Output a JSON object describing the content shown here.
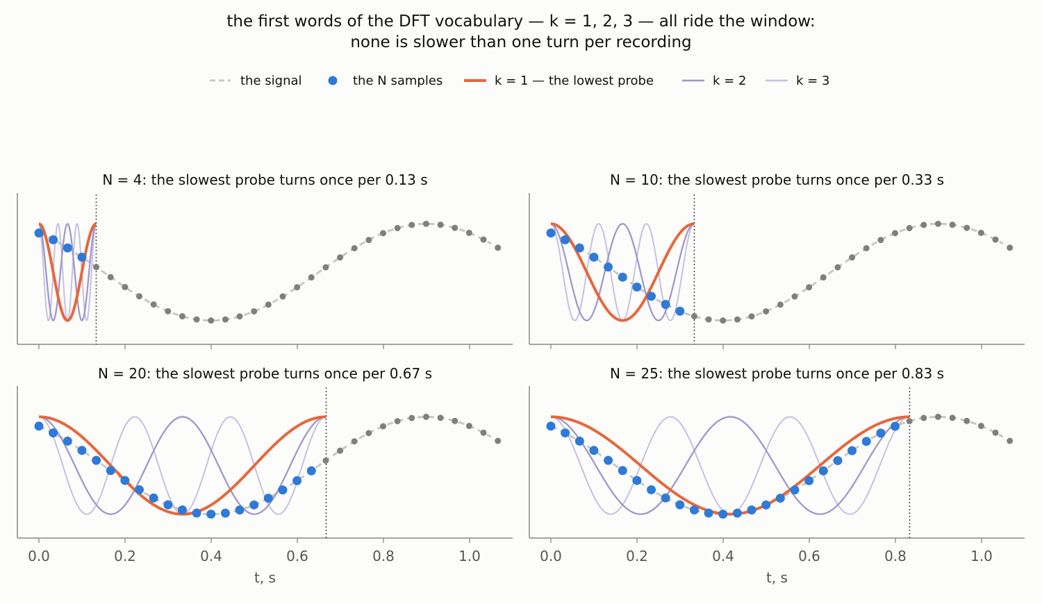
{
  "title_lines": [
    "the first words of the DFT vocabulary — k = 1, 2, 3 — all ride the window:",
    "none is slower than one turn per recording"
  ],
  "legend": [
    {
      "label": "the signal",
      "kind": "dashed",
      "color": "#c8c8c4"
    },
    {
      "label": "the N samples",
      "kind": "dot",
      "color": "#2e7ad6"
    },
    {
      "label": "k = 1 — the lowest probe",
      "kind": "line",
      "color": "#e8663a"
    },
    {
      "label": "k = 2",
      "kind": "line",
      "color": "#9f97cc"
    },
    {
      "label": "k = 3",
      "kind": "line",
      "color": "#c5c0e2"
    }
  ],
  "colors": {
    "signal": "#c8c8c4",
    "sample_in": "#2e7ad6",
    "sample_out": "#7f7f7f",
    "k1": "#e8663a",
    "k2": "#9f97cc",
    "k3": "#c5c0e2",
    "window_marker": "#444444",
    "axis": "#888888",
    "tick_label": "#555555"
  },
  "chart_data": {
    "type": "line",
    "signal": {
      "function": "sin(2*pi*1*t + 0.7*pi)",
      "frequency_hz": 1.0
    },
    "sample_interval_s": 0.0333,
    "x_range": [
      -0.05,
      1.1
    ],
    "y_range": [
      -1.12,
      1.12
    ],
    "xticks": [
      "0.0",
      "0.2",
      "0.4",
      "0.6",
      "0.8",
      "1.0"
    ],
    "xtick_values": [
      0.0,
      0.2,
      0.4,
      0.6,
      0.8,
      1.0
    ],
    "xlabel": "t, s",
    "panels": [
      {
        "N": 4,
        "window_s": 0.133,
        "title": "N = 4:  the slowest probe turns once per 0.13 s"
      },
      {
        "N": 10,
        "window_s": 0.333,
        "title": "N = 10:  the slowest probe turns once per 0.33 s"
      },
      {
        "N": 20,
        "window_s": 0.667,
        "title": "N = 20:  the slowest probe turns once per 0.67 s"
      },
      {
        "N": 25,
        "window_s": 0.833,
        "title": "N = 25:  the slowest probe turns once per 0.83 s"
      }
    ],
    "probes": [
      {
        "k": 1,
        "name": "k = 1 — the lowest probe",
        "function": "cos(2*pi*k*t/T)"
      },
      {
        "k": 2,
        "name": "k = 2",
        "function": "cos(2*pi*k*t/T)"
      },
      {
        "k": 3,
        "name": "k = 3",
        "function": "cos(2*pi*k*t/T)"
      }
    ]
  }
}
